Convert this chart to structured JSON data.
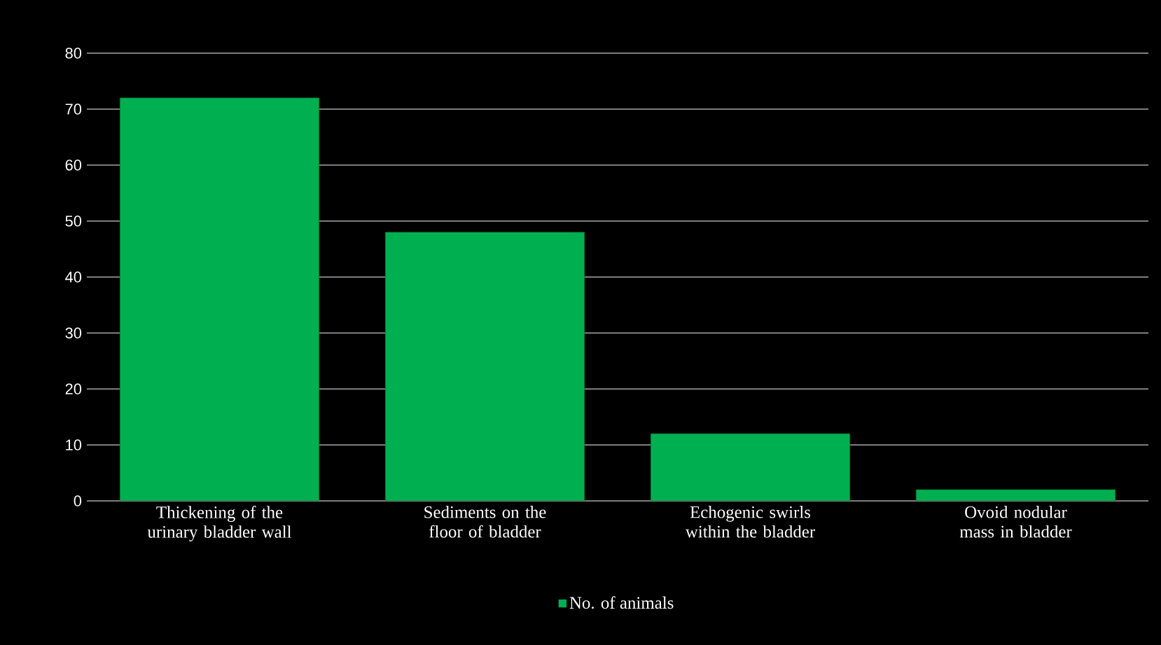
{
  "chart_data": {
    "type": "bar",
    "categories": [
      "Thickening of the urinary bladder wall",
      "Sediments on the floor of bladder",
      "Echogenic swirls within the bladder",
      "Ovoid nodular mass in bladder"
    ],
    "series": [
      {
        "name": "No. of animals",
        "color": "#00b050",
        "values": [
          72,
          48,
          12,
          2
        ]
      }
    ],
    "ylim": [
      0,
      80
    ],
    "yticks": [
      0,
      10,
      20,
      30,
      40,
      50,
      60,
      70,
      80
    ],
    "grid": "y",
    "legend": "bottom"
  }
}
